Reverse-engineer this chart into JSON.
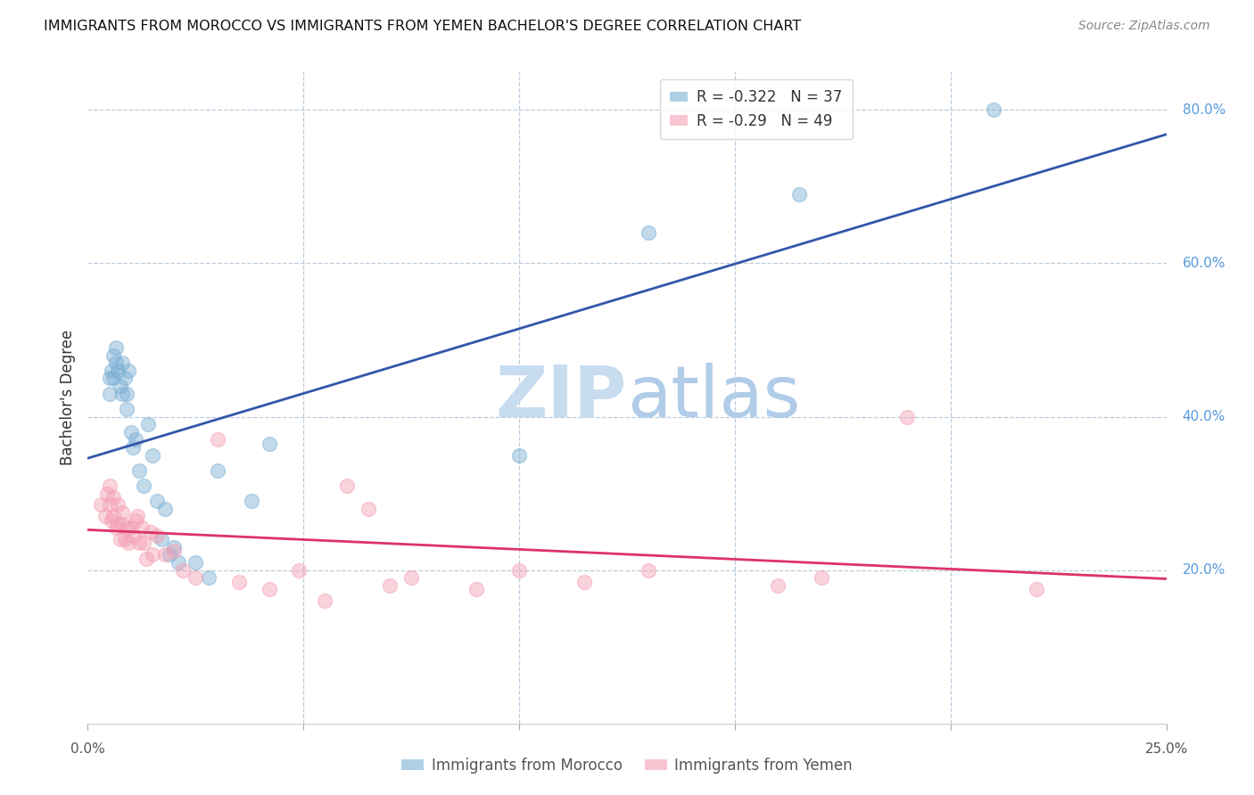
{
  "title": "IMMIGRANTS FROM MOROCCO VS IMMIGRANTS FROM YEMEN BACHELOR'S DEGREE CORRELATION CHART",
  "source": "Source: ZipAtlas.com",
  "ylabel": "Bachelor's Degree",
  "morocco_color": "#7BAFD4",
  "yemen_color": "#F4A0B5",
  "morocco_line_color": "#3355AA",
  "yemen_line_color": "#DD3366",
  "morocco_label": "Immigrants from Morocco",
  "yemen_label": "Immigrants from Yemen",
  "morocco_R": -0.322,
  "morocco_N": 37,
  "yemen_R": -0.29,
  "yemen_N": 49,
  "watermark_zip": "ZIP",
  "watermark_atlas": "atlas",
  "morocco_scatter_x": [
    0.005,
    0.005,
    0.0055,
    0.006,
    0.006,
    0.0065,
    0.0065,
    0.007,
    0.0075,
    0.008,
    0.008,
    0.0085,
    0.009,
    0.009,
    0.0095,
    0.01,
    0.0105,
    0.011,
    0.012,
    0.013,
    0.014,
    0.015,
    0.016,
    0.017,
    0.018,
    0.019,
    0.02,
    0.021,
    0.025,
    0.028,
    0.03,
    0.038,
    0.042,
    0.1,
    0.13,
    0.165,
    0.21
  ],
  "morocco_scatter_y": [
    0.43,
    0.45,
    0.46,
    0.48,
    0.45,
    0.47,
    0.49,
    0.46,
    0.44,
    0.43,
    0.47,
    0.45,
    0.43,
    0.41,
    0.46,
    0.38,
    0.36,
    0.37,
    0.33,
    0.31,
    0.39,
    0.35,
    0.29,
    0.24,
    0.28,
    0.22,
    0.23,
    0.21,
    0.21,
    0.19,
    0.33,
    0.29,
    0.365,
    0.35,
    0.64,
    0.69,
    0.8
  ],
  "yemen_scatter_x": [
    0.003,
    0.004,
    0.0045,
    0.005,
    0.005,
    0.0055,
    0.006,
    0.006,
    0.0065,
    0.007,
    0.007,
    0.0075,
    0.008,
    0.008,
    0.0085,
    0.009,
    0.0095,
    0.01,
    0.0105,
    0.011,
    0.0115,
    0.012,
    0.0125,
    0.013,
    0.0135,
    0.0145,
    0.015,
    0.016,
    0.018,
    0.02,
    0.022,
    0.025,
    0.03,
    0.035,
    0.042,
    0.049,
    0.055,
    0.06,
    0.075,
    0.09,
    0.1,
    0.13,
    0.16,
    0.19,
    0.22,
    0.065,
    0.07,
    0.115,
    0.17
  ],
  "yemen_scatter_y": [
    0.285,
    0.27,
    0.3,
    0.31,
    0.285,
    0.265,
    0.295,
    0.27,
    0.255,
    0.285,
    0.26,
    0.24,
    0.275,
    0.26,
    0.24,
    0.255,
    0.235,
    0.255,
    0.245,
    0.265,
    0.27,
    0.235,
    0.255,
    0.235,
    0.215,
    0.25,
    0.22,
    0.245,
    0.22,
    0.225,
    0.2,
    0.19,
    0.37,
    0.185,
    0.175,
    0.2,
    0.16,
    0.31,
    0.19,
    0.175,
    0.2,
    0.2,
    0.18,
    0.4,
    0.175,
    0.28,
    0.18,
    0.185,
    0.19
  ],
  "xlim": [
    0.0,
    0.25
  ],
  "ylim": [
    0.0,
    0.85
  ],
  "right_yticks": [
    0.2,
    0.4,
    0.6,
    0.8
  ],
  "right_yticklabels": [
    "20.0%",
    "40.0%",
    "60.0%",
    "80.0%"
  ],
  "x_tick_positions": [
    0.0,
    0.05,
    0.1,
    0.15,
    0.2,
    0.25
  ],
  "grid_color": "#BBCCDD",
  "bg_color": "#FFFFFF"
}
